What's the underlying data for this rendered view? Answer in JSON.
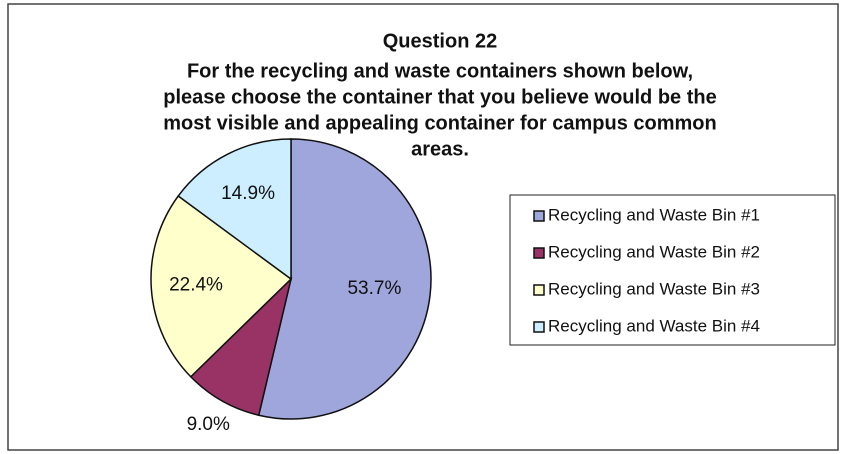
{
  "chart_data": {
    "type": "pie",
    "title": "Question 22",
    "subtitle": [
      "For the recycling and waste containers shown below,",
      "please choose the container that you believe would be the",
      "most visible and appealing container for campus common",
      "areas."
    ],
    "categories": [
      "Recycling and Waste Bin #1",
      "Recycling and Waste Bin #2",
      "Recycling and Waste Bin #3",
      "Recycling and Waste Bin #4"
    ],
    "values": [
      53.7,
      9.0,
      22.4,
      14.9
    ],
    "value_labels": [
      "53.7%",
      "9.0%",
      "22.4%",
      "14.9%"
    ],
    "colors": [
      "#9ea6dc",
      "#993366",
      "#ffffcc",
      "#cceeff"
    ],
    "legend": "right"
  }
}
